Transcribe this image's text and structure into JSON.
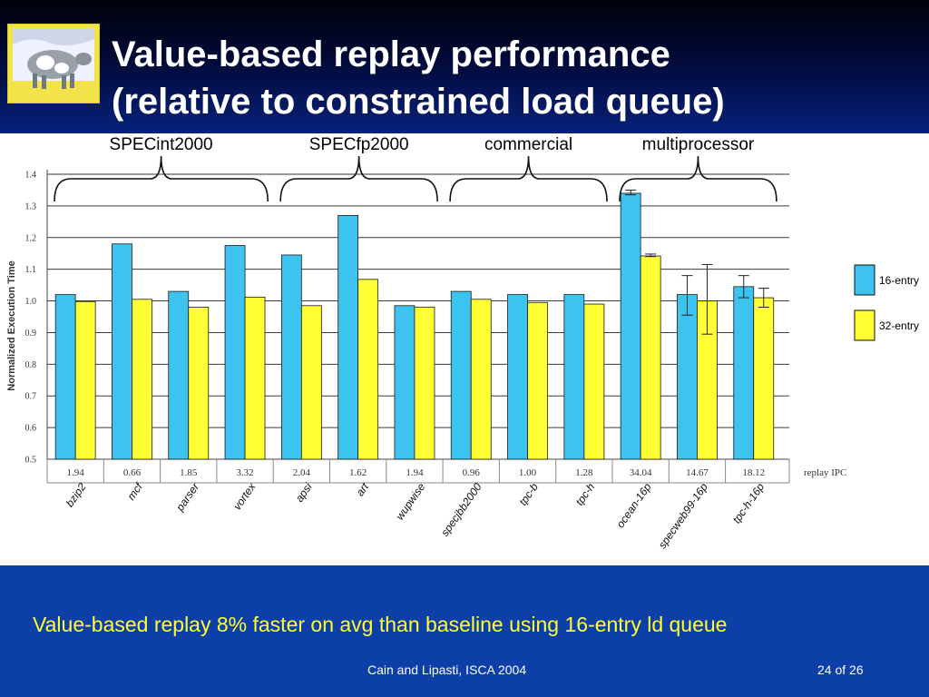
{
  "slide": {
    "title_line1": "Value-based replay performance",
    "title_line2": "(relative to constrained load queue)",
    "caption": "Value-based replay 8% faster on avg than baseline using 16-entry ld queue",
    "credit": "Cain and Lipasti, ISCA 2004",
    "page": "24 of 26"
  },
  "colors": {
    "series_16": "#3cc3f0",
    "series_32": "#ffff33",
    "footer_bg": "#0d3fa8",
    "caption_text": "#ffff33"
  },
  "chart_data": {
    "type": "bar",
    "ylabel": "Normalized Execution Time",
    "ylim": [
      0.5,
      1.4
    ],
    "yticks": [
      "0.5",
      "0.6",
      "0.7",
      "0.8",
      "0.9",
      "1.0",
      "1.1",
      "1.2",
      "1.3",
      "1.4"
    ],
    "grid": true,
    "legend_position": "right",
    "groups": [
      "SPECint2000",
      "SPECfp2000",
      "commercial",
      "multiprocessor"
    ],
    "group_ranges": [
      [
        0,
        3
      ],
      [
        4,
        6
      ],
      [
        7,
        9
      ],
      [
        10,
        12
      ]
    ],
    "categories": [
      "bzip2",
      "mcf",
      "parser",
      "vortex",
      "apsi",
      "art",
      "wupwise",
      "specjbb2000",
      "tpc-b",
      "tpc-h",
      "ocean-16p",
      "specweb99-16p",
      "tpc-h-16p"
    ],
    "ipc_label": "replay IPC",
    "ipc": [
      "1.94",
      "0.66",
      "1.85",
      "3.32",
      "2.04",
      "1.62",
      "1.94",
      "0.96",
      "1.00",
      "1.28",
      "34.04",
      "14.67",
      "18.12"
    ],
    "series": [
      {
        "name": "16-entry",
        "values": [
          1.02,
          1.18,
          1.03,
          1.175,
          1.145,
          1.27,
          0.985,
          1.03,
          1.02,
          1.02,
          1.34,
          1.02,
          1.045
        ],
        "error_bars": [
          null,
          null,
          null,
          null,
          null,
          null,
          null,
          null,
          null,
          null,
          [
            1.335,
            1.35
          ],
          [
            0.955,
            1.08
          ],
          [
            1.01,
            1.08
          ]
        ]
      },
      {
        "name": "32-entry",
        "values": [
          0.998,
          1.005,
          0.98,
          1.012,
          0.985,
          1.068,
          0.98,
          1.005,
          0.995,
          0.99,
          1.142,
          1.0,
          1.01
        ],
        "error_bars": [
          null,
          null,
          null,
          null,
          null,
          null,
          null,
          null,
          null,
          null,
          [
            1.14,
            1.148
          ],
          [
            0.895,
            1.115
          ],
          [
            0.98,
            1.04
          ]
        ]
      }
    ]
  }
}
